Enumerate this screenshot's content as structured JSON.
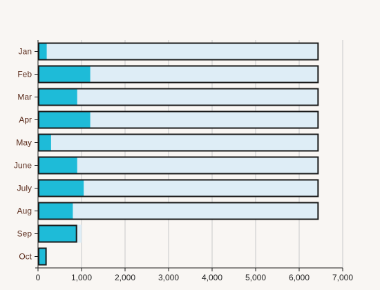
{
  "chart_data": {
    "type": "bar",
    "orientation": "horizontal",
    "categories": [
      "Jan",
      "Feb",
      "Mar",
      "Apr",
      "May",
      "June",
      "July",
      "Aug",
      "Sep",
      "Oct"
    ],
    "series": [
      {
        "role": "background",
        "values": [
          6450,
          6450,
          6450,
          6450,
          6450,
          6450,
          6450,
          6450,
          1000,
          100
        ],
        "color": "#deedf6",
        "outlined": false
      },
      {
        "role": "foreground",
        "values": [
          200,
          1200,
          900,
          1200,
          300,
          900,
          1050,
          800,
          900,
          200
        ],
        "color": "#1ebbd8",
        "outlined": false
      }
    ],
    "outlined_bars": [
      6450,
      6450,
      6450,
      6450,
      6450,
      6450,
      6450,
      6450,
      900,
      200
    ],
    "outline_color": "#1a1a1a",
    "xlim": [
      0,
      7000
    ],
    "xticks": [
      0,
      1000,
      2000,
      3000,
      4000,
      5000,
      6000,
      7000
    ],
    "xtick_labels": [
      "0",
      "1,000",
      "2,000",
      "3,000",
      "4,000",
      "5,000",
      "6,000",
      "7,000"
    ],
    "grid": "vertical",
    "gridline_color": "#c8c8c8",
    "axis_color": "#1a1a1a",
    "legend": "none",
    "title": "",
    "xlabel": "",
    "ylabel": ""
  }
}
